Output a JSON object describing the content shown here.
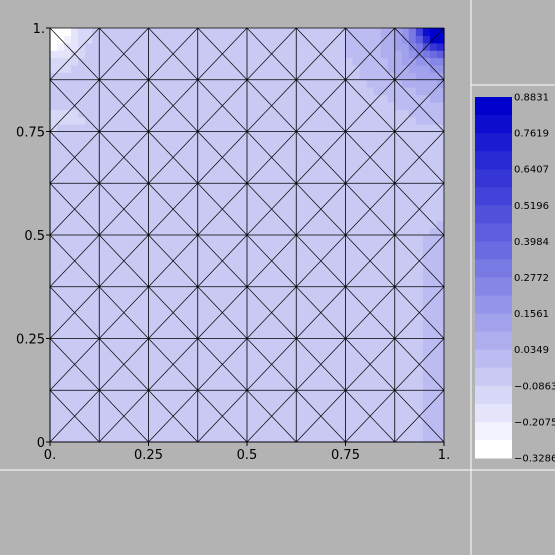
{
  "chart_data": {
    "type": "heatmap",
    "title": "",
    "xlabel": "",
    "ylabel": "",
    "xlim": [
      0,
      1
    ],
    "ylim": [
      0,
      1
    ],
    "x_ticks": [
      "0.",
      "0.25",
      "0.5",
      "0.75",
      "1."
    ],
    "x_tick_values": [
      0,
      0.25,
      0.5,
      0.75,
      1
    ],
    "y_ticks": [
      "0",
      "0.25",
      "0.5",
      "0.75",
      "1."
    ],
    "y_tick_values": [
      0,
      0.25,
      0.5,
      0.75,
      1
    ],
    "mesh": {
      "divisions": 8,
      "cell_diagonals": "both"
    },
    "value_range": [
      -0.3286,
      0.8831
    ],
    "colorbar": {
      "labels": [
        "0.8831",
        "0.7619",
        "0.6407",
        "0.5196",
        "0.3984",
        "0.2772",
        "0.1561",
        "0.0349",
        "−0.0863",
        "−0.2075",
        "−0.3286"
      ],
      "values": [
        0.8831,
        0.7619,
        0.6407,
        0.5196,
        0.3984,
        0.2772,
        0.1561,
        0.0349,
        -0.0863,
        -0.2075,
        -0.3286
      ],
      "bands": 20,
      "color_low": "#ffffff",
      "color_high": "#0000cc"
    },
    "field_description": "nearly uniform light blue around -0.04, white low region at top-left corner, dark blue peak at top-right corner"
  },
  "colors": {
    "background": "#b3b3b3",
    "plot_field_base": "#c6c6ef",
    "mesh_lines": "#000000",
    "frame_lines": "#ffffff"
  }
}
